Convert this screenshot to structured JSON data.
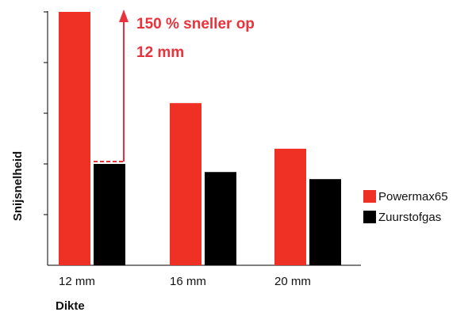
{
  "chart_data": {
    "type": "bar",
    "categories": [
      "12 mm",
      "16 mm",
      "20 mm"
    ],
    "series": [
      {
        "name": "Powermax65",
        "values": [
          2.5,
          1.6,
          1.15
        ],
        "color": "#ee3124"
      },
      {
        "name": "Zuurstofgas",
        "values": [
          1.0,
          0.92,
          0.85
        ],
        "color": "#000000"
      }
    ],
    "xlabel": "Dikte",
    "ylabel": "Snijsnelheid",
    "ylim": [
      0,
      2.5
    ],
    "yticks": [
      0.5,
      1.0,
      1.5,
      2.0,
      2.5
    ],
    "ytick_labels_shown": false,
    "grid": false,
    "legend_position": "right",
    "annotation": {
      "lines": [
        "150 % sneller op",
        "12 mm"
      ],
      "color": "#e8333c",
      "category": "12 mm",
      "from_value": 1.0,
      "to_value": 2.5
    }
  }
}
